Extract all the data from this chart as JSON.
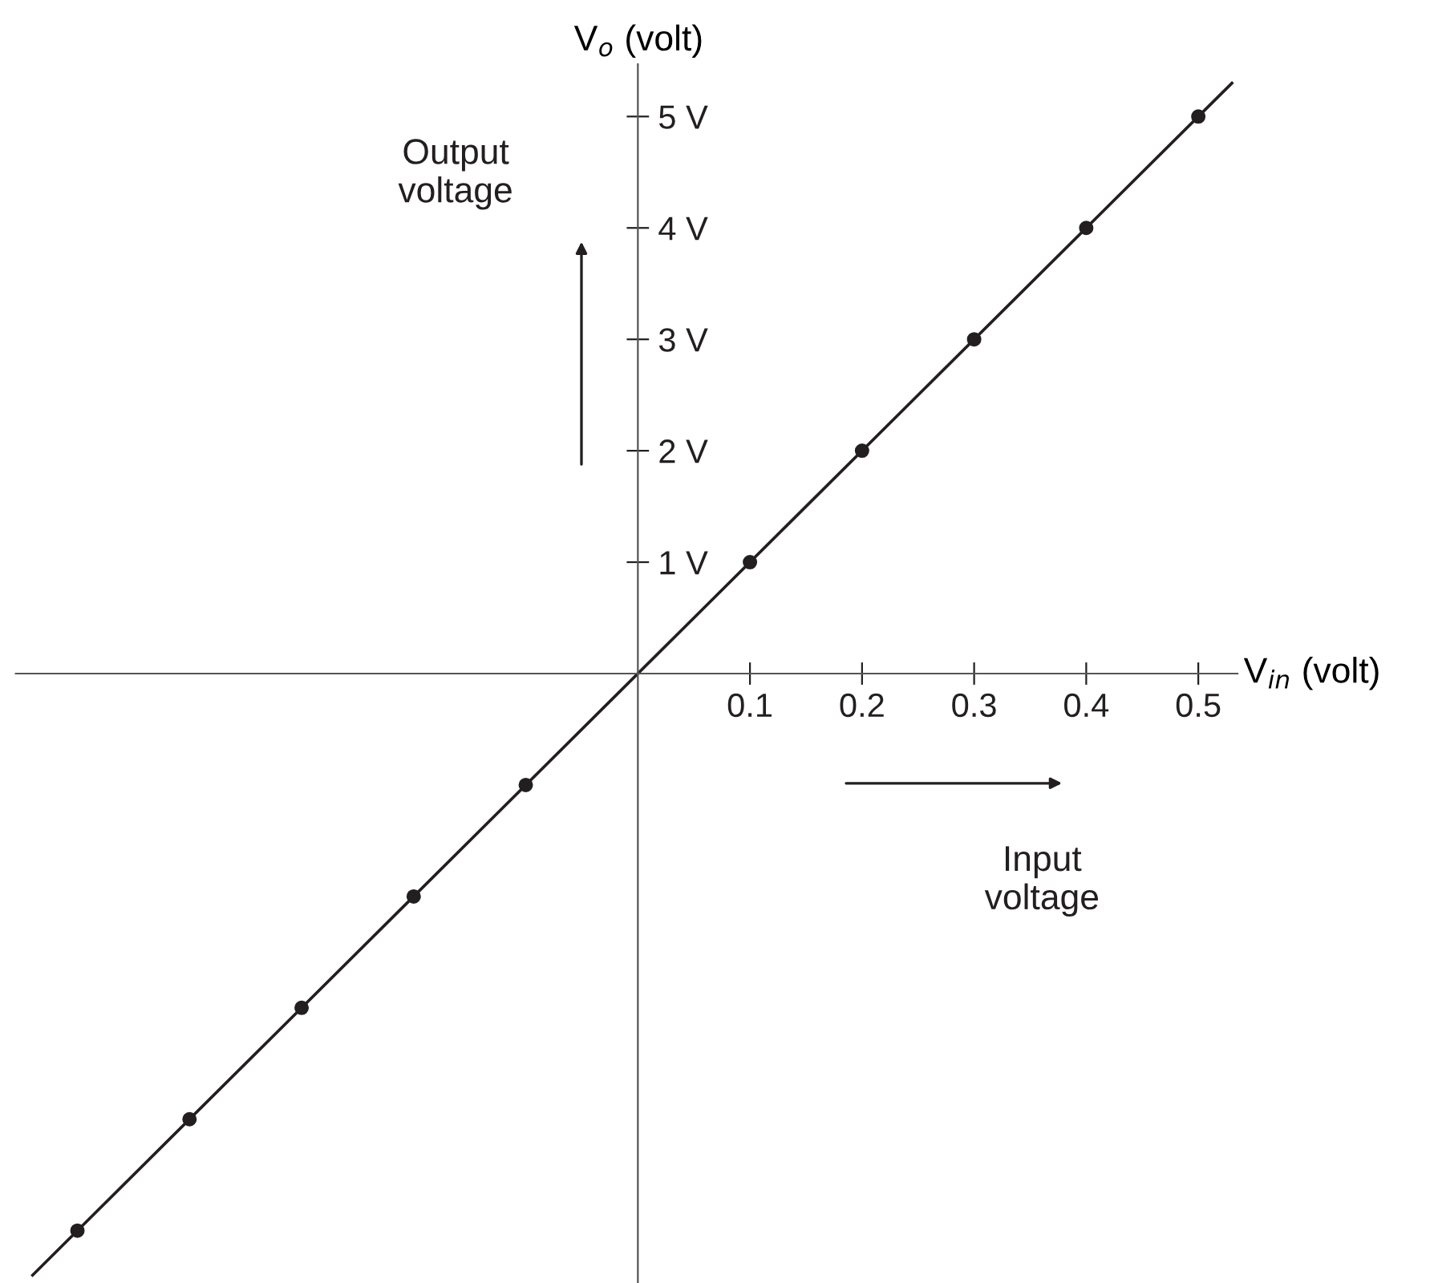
{
  "chart_data": {
    "type": "scatter",
    "xlabel": "V$_{in}$ (volt)",
    "ylabel": "V$_{o}$ (volt)",
    "series": [
      {
        "type": "line",
        "color": "#231f20",
        "x": [
          -0.54,
          0.53
        ],
        "values": [
          -5.4,
          5.3
        ],
        "marker": "none"
      },
      {
        "color": "#231f20",
        "x": [
          -0.5,
          -0.4,
          -0.3,
          -0.2,
          -0.1,
          0.1,
          0.2,
          0.3,
          0.4,
          0.5
        ],
        "values": [
          -5,
          -4,
          -3,
          -2,
          -1,
          1,
          2,
          3,
          4,
          5
        ],
        "marker": "circle"
      }
    ],
    "xlim": [
      -0.555,
      0.535
    ],
    "ylim": [
      -5.47,
      5.47
    ],
    "xticks": [
      0.1,
      0.2,
      0.3,
      0.4,
      0.5
    ],
    "yticks": [
      {
        "value": 1,
        "label": "1 V"
      },
      {
        "value": 2,
        "label": "2 V"
      },
      {
        "value": 3,
        "label": "3 V"
      },
      {
        "value": 4,
        "label": "4 V"
      },
      {
        "value": 5,
        "label": "5 V"
      }
    ],
    "annotations": [
      "Output\nvoltage",
      "Input\nvoltage"
    ],
    "grid": false,
    "legend": false
  }
}
